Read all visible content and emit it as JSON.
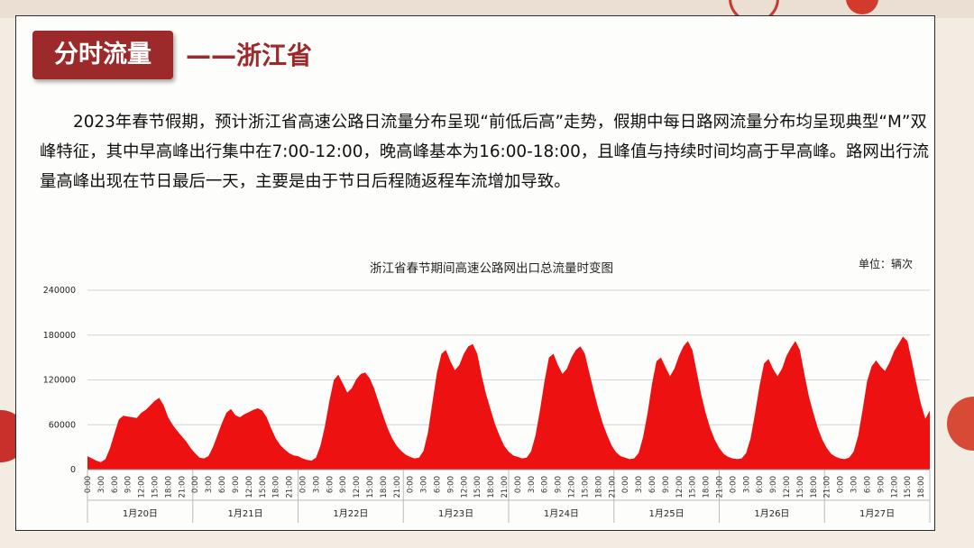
{
  "badge": "分时流量",
  "subtitle": "——浙江省",
  "paragraph": "2023年春节假期，预计浙江省高速公路日流量分布呈现“前低后高”走势，假期中每日路网流量分布均呈现典型“M”双峰特征，其中早高峰出行集中在7:00-12:00，晚高峰基本为16:00-18:00，且峰值与持续时间均高于早高峰。路网出行流量高峰出现在节日最后一天，主要是由于节日后程随返程车流增加导致。",
  "colors": {
    "accent": "#9c2a2a",
    "area": "#ee1111"
  },
  "chart_data": {
    "type": "area",
    "title": "浙江省春节期间高速公路网出口总流量时变图",
    "unit_label": "单位：辆次",
    "ylim": [
      0,
      240000
    ],
    "yticks": [
      0,
      60000,
      120000,
      180000,
      240000
    ],
    "hour_tick_labels": [
      "0:00",
      "3:00",
      "6:00",
      "9:00",
      "12:00",
      "15:00",
      "18:00",
      "21:00"
    ],
    "days": [
      "1月20日",
      "1月21日",
      "1月22日",
      "1月23日",
      "1月24日",
      "1月25日",
      "1月26日",
      "1月27日"
    ],
    "series": [
      {
        "values": [
          18000,
          15000,
          12000,
          10000,
          14000,
          28000,
          48000,
          67000,
          72000,
          71000,
          70000,
          69000,
          76000,
          80000,
          86000,
          92000,
          96000,
          86000,
          70000,
          60000,
          52000,
          45000,
          38000,
          29000,
          22000,
          16000,
          15000,
          18000,
          30000,
          46000,
          62000,
          76000,
          81000,
          73000,
          70000,
          74000,
          77000,
          80000,
          82000,
          79000,
          70000,
          55000,
          42000,
          33000,
          27000,
          22000,
          19000,
          18000,
          15000,
          13000,
          12000,
          16000,
          32000,
          58000,
          92000,
          120000,
          127000,
          115000,
          103000,
          109000,
          121000,
          128000,
          130000,
          122000,
          108000,
          90000,
          72000,
          55000,
          42000,
          32000,
          25000,
          20000,
          17000,
          15000,
          16000,
          25000,
          50000,
          90000,
          130000,
          155000,
          160000,
          145000,
          133000,
          140000,
          155000,
          165000,
          168000,
          155000,
          125000,
          100000,
          80000,
          60000,
          45000,
          32000,
          24000,
          19000,
          17000,
          15000,
          16000,
          24000,
          46000,
          80000,
          118000,
          150000,
          155000,
          140000,
          128000,
          135000,
          150000,
          160000,
          165000,
          155000,
          130000,
          105000,
          82000,
          62000,
          46000,
          32000,
          23000,
          18000,
          16000,
          14000,
          15000,
          22000,
          43000,
          75000,
          115000,
          145000,
          150000,
          137000,
          125000,
          135000,
          152000,
          165000,
          172000,
          160000,
          130000,
          100000,
          75000,
          55000,
          40000,
          29000,
          21000,
          17000,
          15000,
          14000,
          15000,
          22000,
          42000,
          75000,
          112000,
          142000,
          148000,
          135000,
          125000,
          135000,
          152000,
          163000,
          172000,
          160000,
          128000,
          98000,
          76000,
          56000,
          40000,
          29000,
          21000,
          17000,
          15000,
          14000,
          16000,
          24000,
          45000,
          80000,
          118000,
          138000,
          146000,
          138000,
          132000,
          143000,
          158000,
          168000,
          178000,
          172000,
          145000,
          115000,
          88000,
          68000,
          79000
        ]
      }
    ]
  }
}
